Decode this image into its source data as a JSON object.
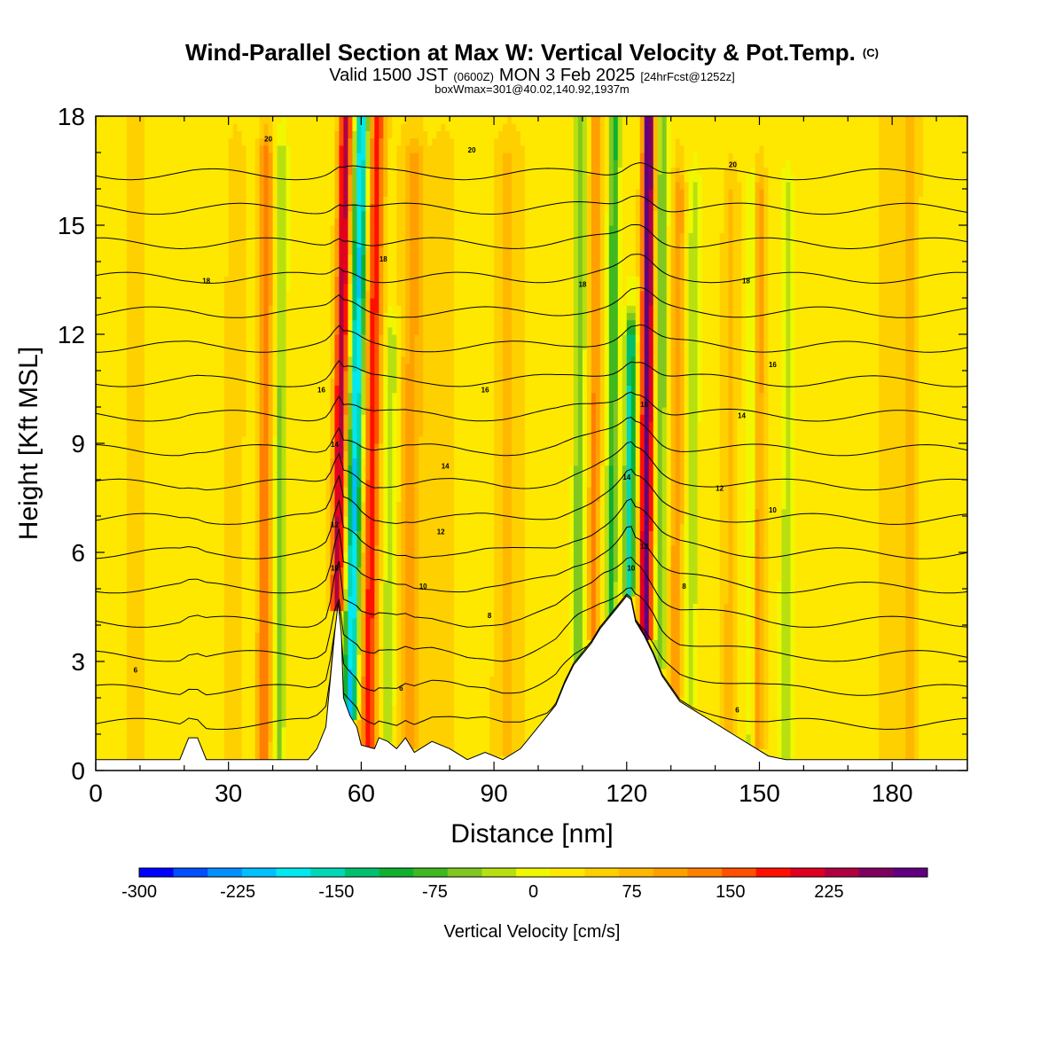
{
  "chart_data": {
    "type": "heatmap",
    "title": "Wind-Parallel Section at Max W: Vertical Velocity & Pot.Temp.",
    "title_mark": "(C)",
    "subtitle_parts": [
      "Valid 1500 JST",
      "(0600Z)",
      "MON 3 Feb 2025",
      "[24hrFcst@1252z]"
    ],
    "subtitle2": "boxWmax=301@40.02,140.92,1937m",
    "xlabel": "Distance [nm]",
    "ylabel": "Height [Kft MSL]",
    "xlim": [
      0,
      197
    ],
    "ylim": [
      0,
      18
    ],
    "x_ticks": [
      "0",
      "30",
      "60",
      "90",
      "120",
      "150",
      "180"
    ],
    "y_ticks": [
      "0",
      "3",
      "6",
      "9",
      "12",
      "15",
      "18"
    ],
    "colorbar": {
      "label": "Vertical Velocity [cm/s]",
      "min": -300,
      "max": 275,
      "step": 25,
      "tick_labels": [
        "-300",
        "-225",
        "-150",
        "-75",
        "0",
        "75",
        "150",
        "225"
      ],
      "colors": [
        "#0000ff",
        "#0050ff",
        "#0090ff",
        "#00c0ff",
        "#00e8f0",
        "#00d8b8",
        "#00c070",
        "#10b030",
        "#40b820",
        "#80c820",
        "#b8e010",
        "#f0f800",
        "#ffe800",
        "#ffd000",
        "#ffb800",
        "#ffa000",
        "#ff8000",
        "#ff5000",
        "#ff1000",
        "#e00020",
        "#b00040",
        "#800060",
        "#600080"
      ]
    },
    "terrain_profile": [
      [
        0,
        0.3
      ],
      [
        19,
        0.3
      ],
      [
        21,
        0.9
      ],
      [
        23,
        0.9
      ],
      [
        25,
        0.3
      ],
      [
        48,
        0.3
      ],
      [
        50,
        0.6
      ],
      [
        52,
        1.2
      ],
      [
        53,
        2.5
      ],
      [
        54,
        3.8
      ],
      [
        54.8,
        4.6
      ],
      [
        55.5,
        3.8
      ],
      [
        56,
        2.0
      ],
      [
        57.5,
        1.5
      ],
      [
        59,
        1.2
      ],
      [
        60,
        0.7
      ],
      [
        63,
        0.6
      ],
      [
        64,
        0.9
      ],
      [
        66,
        0.8
      ],
      [
        68,
        0.6
      ],
      [
        70,
        0.9
      ],
      [
        72,
        0.5
      ],
      [
        76,
        0.8
      ],
      [
        80,
        0.6
      ],
      [
        84,
        0.3
      ],
      [
        88,
        0.5
      ],
      [
        92,
        0.3
      ],
      [
        96,
        0.6
      ],
      [
        100,
        1.2
      ],
      [
        104,
        1.8
      ],
      [
        106,
        2.4
      ],
      [
        108,
        2.9
      ],
      [
        110,
        3.2
      ],
      [
        112,
        3.5
      ],
      [
        114,
        3.9
      ],
      [
        116,
        4.2
      ],
      [
        118,
        4.5
      ],
      [
        120,
        4.8
      ],
      [
        121,
        4.7
      ],
      [
        122,
        4.1
      ],
      [
        124,
        3.7
      ],
      [
        126,
        3.2
      ],
      [
        128,
        2.6
      ],
      [
        132,
        1.9
      ],
      [
        136,
        1.6
      ],
      [
        140,
        1.3
      ],
      [
        144,
        1.0
      ],
      [
        148,
        0.7
      ],
      [
        152,
        0.4
      ],
      [
        156,
        0.3
      ],
      [
        197,
        0.3
      ]
    ],
    "w_features": [
      {
        "x": 38,
        "top": 17,
        "amp": 110,
        "width": 1.5,
        "lean": 0.2
      },
      {
        "x": 41.5,
        "top": 17,
        "amp": -70,
        "width": 1.3,
        "lean": 0.2
      },
      {
        "x": 31,
        "top": 17,
        "amp": 30,
        "width": 2.0,
        "lean": 0.3
      },
      {
        "x": 54.5,
        "top": 18,
        "amp": 200,
        "width": 1.5,
        "lean": 1.0
      },
      {
        "x": 57.5,
        "top": 18,
        "amp": -220,
        "width": 1.6,
        "lean": 1.1
      },
      {
        "x": 61.5,
        "top": 18,
        "amp": 150,
        "width": 1.8,
        "lean": 0.8
      },
      {
        "x": 66,
        "top": 12,
        "amp": -60,
        "width": 1.5,
        "lean": 0.5
      },
      {
        "x": 71,
        "top": 17,
        "amp": 70,
        "width": 2.5,
        "lean": 0.3
      },
      {
        "x": 78,
        "top": 17,
        "amp": 30,
        "width": 2.5,
        "lean": 0.2
      },
      {
        "x": 93,
        "top": 17,
        "amp": 40,
        "width": 3.0,
        "lean": 0.1
      },
      {
        "x": 109,
        "top": 18,
        "amp": -90,
        "width": 1.3,
        "lean": 0.3
      },
      {
        "x": 112.5,
        "top": 18,
        "amp": 90,
        "width": 1.3,
        "lean": 0.3
      },
      {
        "x": 116.5,
        "top": 18,
        "amp": -120,
        "width": 1.2,
        "lean": 0.4
      },
      {
        "x": 120.5,
        "top": 12,
        "amp": -180,
        "width": 1.2,
        "lean": 0.4
      },
      {
        "x": 124.3,
        "top": 18,
        "amp": 270,
        "width": 1.3,
        "lean": 0.3
      },
      {
        "x": 127.5,
        "top": 18,
        "amp": -90,
        "width": 1.2,
        "lean": 0.3
      },
      {
        "x": 131,
        "top": 16,
        "amp": 80,
        "width": 1.4,
        "lean": 0.4
      },
      {
        "x": 134.5,
        "top": 16,
        "amp": -60,
        "width": 1.3,
        "lean": 0.4
      },
      {
        "x": 143,
        "top": 16,
        "amp": 40,
        "width": 1.8,
        "lean": 0.3
      },
      {
        "x": 148,
        "top": 16,
        "amp": -60,
        "width": 1.2,
        "lean": 0.2
      },
      {
        "x": 149.5,
        "top": 16,
        "amp": 80,
        "width": 1.4,
        "lean": 0.2
      },
      {
        "x": 156,
        "top": 16,
        "amp": -50,
        "width": 1.5,
        "lean": 0.2
      },
      {
        "x": 180,
        "top": 18,
        "amp": 25,
        "width": 3.0,
        "lean": 0.1
      },
      {
        "x": 184,
        "top": 18,
        "amp": 35,
        "width": 2.0,
        "lean": 0.1
      },
      {
        "x": 9,
        "top": 18,
        "amp": 15,
        "width": 3.0,
        "lean": 0.1
      }
    ],
    "contour_label_samples": [
      {
        "text": "20",
        "x": 39,
        "y": 17.3
      },
      {
        "text": "20",
        "x": 85,
        "y": 17.0
      },
      {
        "text": "20",
        "x": 144,
        "y": 16.6
      },
      {
        "text": "18",
        "x": 25,
        "y": 13.4
      },
      {
        "text": "18",
        "x": 65,
        "y": 14.0
      },
      {
        "text": "18",
        "x": 110,
        "y": 13.3
      },
      {
        "text": "18",
        "x": 147,
        "y": 13.4
      },
      {
        "text": "16",
        "x": 51,
        "y": 10.4
      },
      {
        "text": "16",
        "x": 88,
        "y": 10.4
      },
      {
        "text": "16",
        "x": 153,
        "y": 11.1
      },
      {
        "text": "16",
        "x": 124,
        "y": 10.0
      },
      {
        "text": "14",
        "x": 54,
        "y": 8.9
      },
      {
        "text": "14",
        "x": 79,
        "y": 8.3
      },
      {
        "text": "14",
        "x": 146,
        "y": 9.7
      },
      {
        "text": "14",
        "x": 120,
        "y": 8.0
      },
      {
        "text": "12",
        "x": 54,
        "y": 6.7
      },
      {
        "text": "12",
        "x": 78,
        "y": 6.5
      },
      {
        "text": "12",
        "x": 141,
        "y": 7.7
      },
      {
        "text": "12",
        "x": 124,
        "y": 6.1
      },
      {
        "text": "10",
        "x": 54,
        "y": 5.5
      },
      {
        "text": "10",
        "x": 74,
        "y": 5.0
      },
      {
        "text": "10",
        "x": 153,
        "y": 7.1
      },
      {
        "text": "10",
        "x": 121,
        "y": 5.5
      },
      {
        "text": "8",
        "x": 89,
        "y": 4.2
      },
      {
        "text": "8",
        "x": 133,
        "y": 5.0
      },
      {
        "text": "6",
        "x": 9,
        "y": 2.7
      },
      {
        "text": "6",
        "x": 69,
        "y": 2.2
      },
      {
        "text": "6",
        "x": 145,
        "y": 1.6
      }
    ]
  }
}
